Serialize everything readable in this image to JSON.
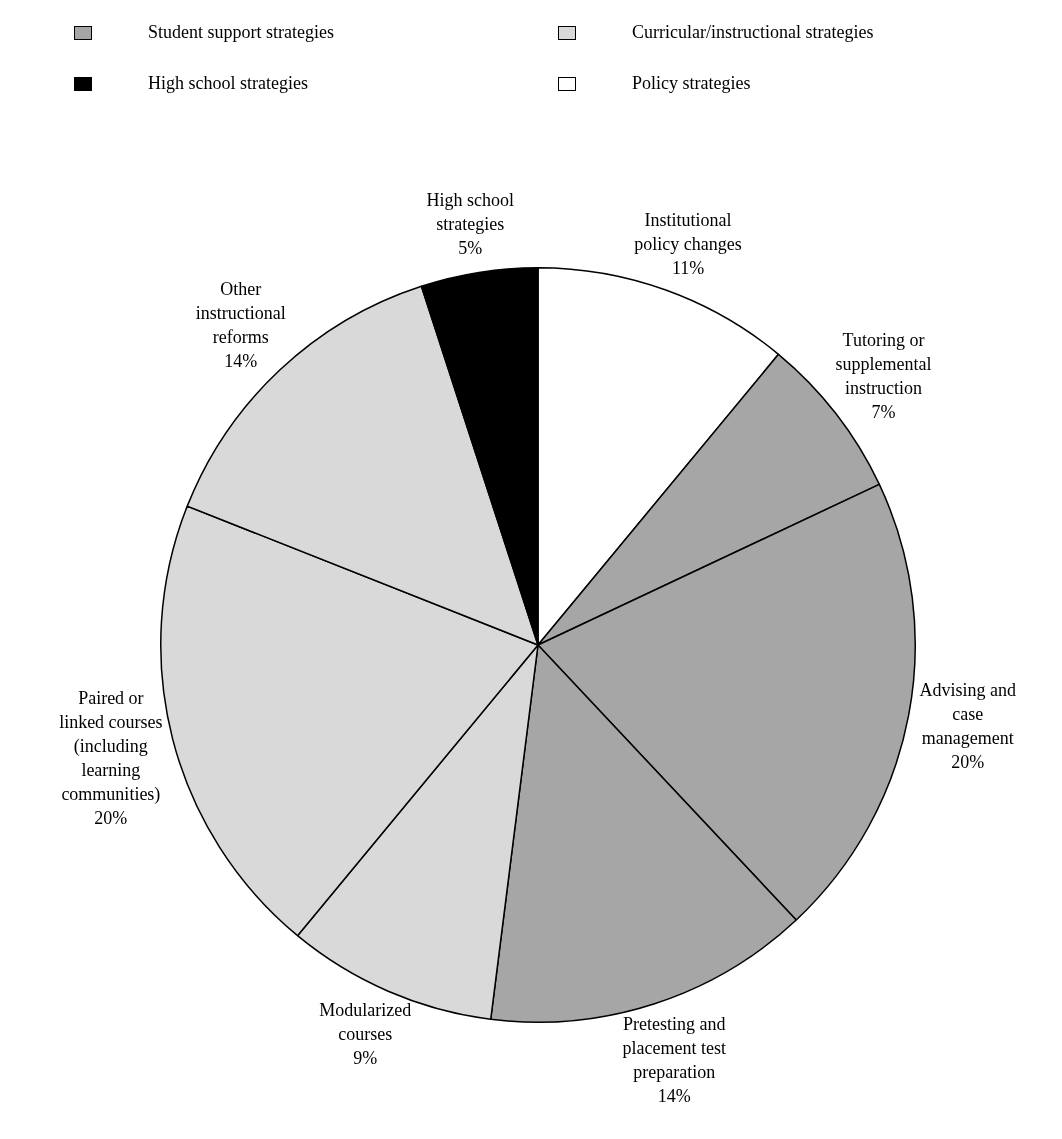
{
  "chart_data": {
    "type": "pie",
    "categories": [
      "Institutional policy changes",
      "Tutoring or supplemental instruction",
      "Advising and case management",
      "Pretesting and placement test preparation",
      "Modularized courses",
      "Paired or linked courses (including learning communities)",
      "Other instructional reforms",
      "High school strategies"
    ],
    "values": [
      11,
      7,
      20,
      14,
      9,
      20,
      14,
      5
    ],
    "value_labels": [
      "11%",
      "7%",
      "20%",
      "14%",
      "9%",
      "20%",
      "14%",
      "5%"
    ],
    "colors": [
      "#ffffff",
      "#a6a6a6",
      "#a6a6a6",
      "#a6a6a6",
      "#d9d9d9",
      "#d9d9d9",
      "#d9d9d9",
      "#000000"
    ],
    "annotations": [
      "Student support strategies",
      "Curricular/instructional strategies",
      "High school strategies",
      "Policy strategies"
    ]
  }
}
